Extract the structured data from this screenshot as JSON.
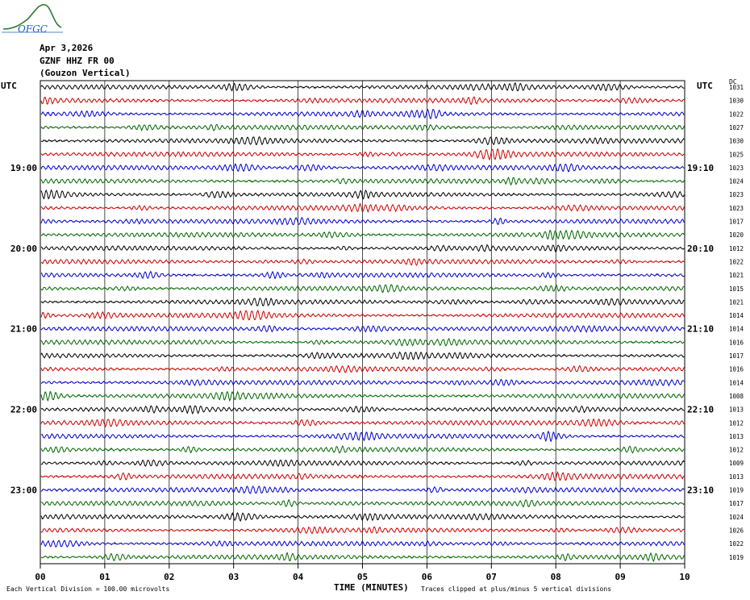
{
  "logo": {
    "text": "OFGC"
  },
  "header": {
    "date": "Apr 3,2026",
    "station": "GZNF HHZ FR 00",
    "location": "(Gouzon Vertical)"
  },
  "left_axis_label": "UTC",
  "right_axis_label": "UTC",
  "right_column_label": "DC",
  "colors": {
    "trace_cycle": [
      "#000000",
      "#cc0000",
      "#0000cc",
      "#006600"
    ],
    "grid": "#000000"
  },
  "chart_data": {
    "type": "line",
    "title": "",
    "xlabel": "TIME (MINUTES)",
    "ylabel": "",
    "xlim": [
      0,
      10
    ],
    "x_ticks": [
      "00",
      "01",
      "02",
      "03",
      "04",
      "05",
      "06",
      "07",
      "08",
      "09",
      "10"
    ],
    "left_hour_labels": [
      "19:00",
      "20:00",
      "21:00",
      "22:00",
      "23:00"
    ],
    "right_hour_labels": [
      "19:10",
      "20:10",
      "21:10",
      "22:10",
      "23:10"
    ],
    "trace_count": 36,
    "dc_offsets": [
      1031,
      1030,
      1022,
      1027,
      1030,
      1025,
      1023,
      1024,
      1023,
      1023,
      1017,
      1020,
      1012,
      1022,
      1021,
      1015,
      1021,
      1014,
      1014,
      1016,
      1017,
      1016,
      1014,
      1008,
      1013,
      1012,
      1013,
      1012,
      1009,
      1013,
      1019,
      1017,
      1024,
      1026,
      1022,
      1019
    ],
    "footer_left": "Each Vertical Division =  100.00 microvolts",
    "footer_right": "Traces clipped at plus/minus 5 vertical divisions",
    "grid": true
  }
}
